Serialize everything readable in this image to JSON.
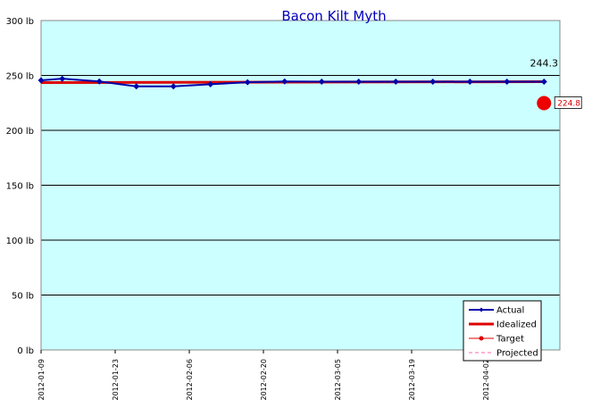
{
  "chart_data": {
    "type": "line",
    "title": "Bacon Kilt Myth",
    "xlabel": "",
    "ylabel": "",
    "y_unit": "lb",
    "ylim": [
      0,
      300
    ],
    "yticks": [
      0,
      50,
      100,
      150,
      200,
      250,
      300
    ],
    "xlim": [
      "2012-01-09",
      "2012-04-16"
    ],
    "xticks": [
      "2012-01-09",
      "2012-01-23",
      "2012-02-06",
      "2012-02-20",
      "2012-03-05",
      "2012-03-19",
      "2012-04-02"
    ],
    "grid": "horizontal",
    "legend_position": "bottom-right",
    "series": [
      {
        "name": "Actual",
        "color": "#0000aa",
        "marker": "diamond",
        "x": [
          "2012-01-09",
          "2012-01-13",
          "2012-01-20",
          "2012-01-27",
          "2012-02-03",
          "2012-02-10",
          "2012-02-17",
          "2012-02-24",
          "2012-03-02",
          "2012-03-09",
          "2012-03-16",
          "2012-03-23",
          "2012-03-30",
          "2012-04-06",
          "2012-04-13"
        ],
        "values": [
          245.5,
          247.0,
          244.5,
          240.0,
          240.0,
          242.0,
          243.8,
          244.5,
          244.3,
          244.3,
          244.3,
          244.3,
          244.3,
          244.3,
          244.3
        ]
      },
      {
        "name": "Idealized",
        "color": "#dd0000",
        "x": [
          "2012-01-09",
          "2012-04-13"
        ],
        "values": [
          243.5,
          244.3
        ]
      },
      {
        "name": "Target",
        "color": "#dd0000",
        "x": [
          "2012-04-13"
        ],
        "values": [
          224.8
        ]
      },
      {
        "name": "Projected",
        "color": "#ff66aa",
        "x": [],
        "values": []
      }
    ],
    "annotations": {
      "last_value": "244.3",
      "target_value": "224.8"
    },
    "colors": {
      "plot_background": "#ccffff",
      "title": "#0000bb",
      "grid": "#000000"
    }
  }
}
